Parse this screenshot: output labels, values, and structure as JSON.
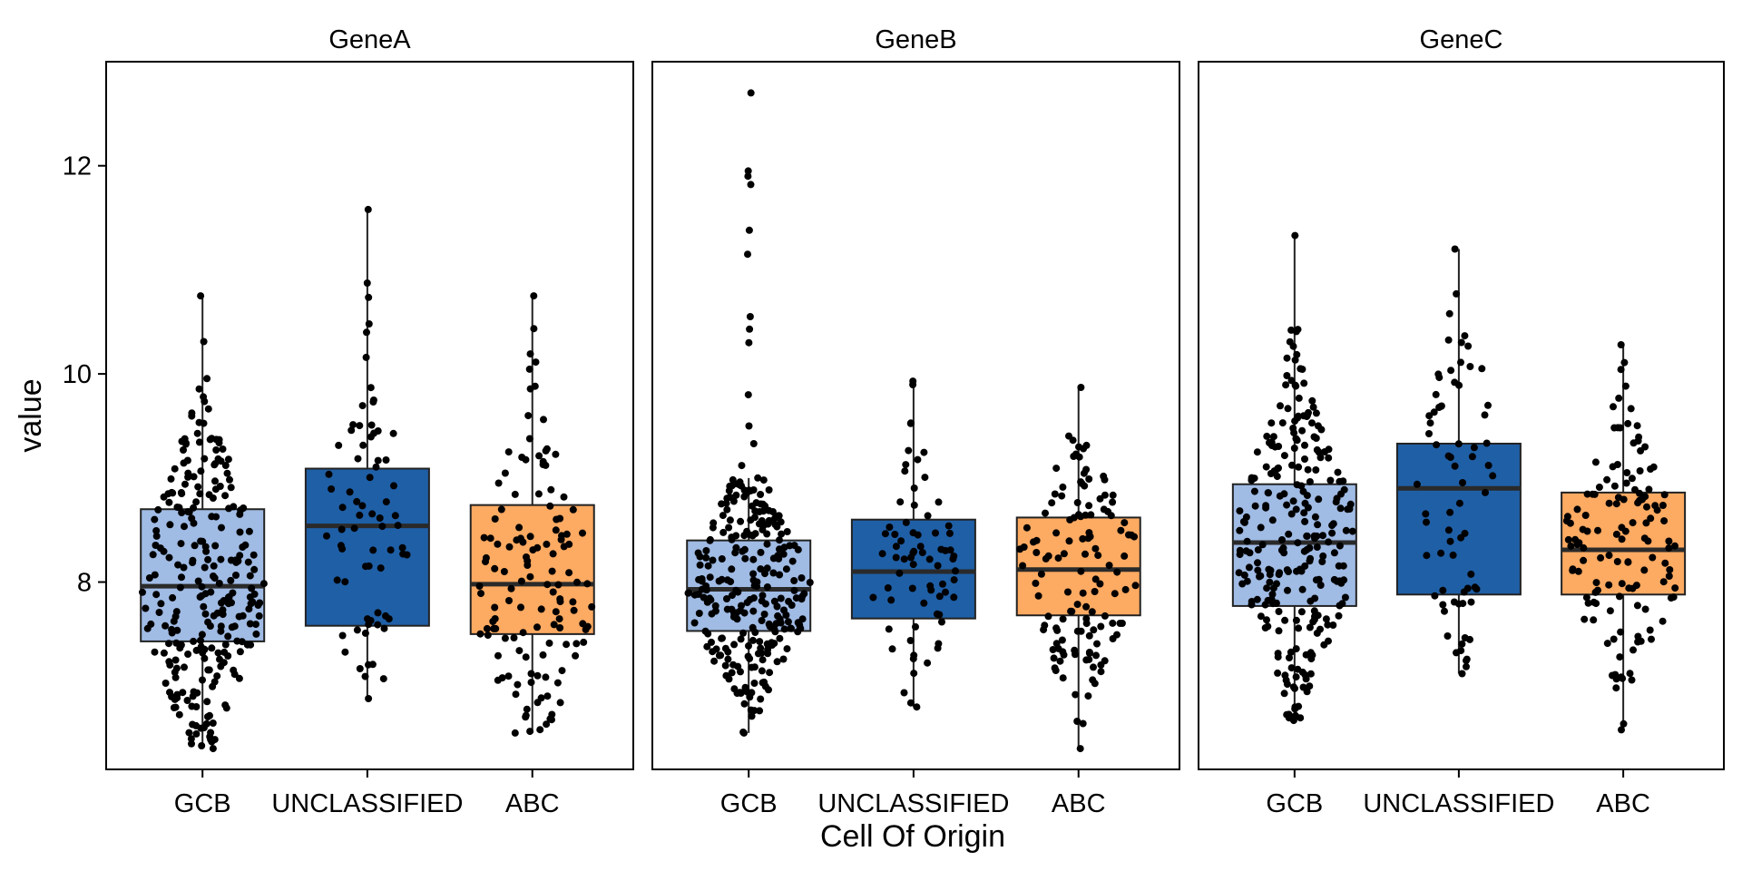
{
  "chart_data": {
    "type": "box",
    "xlabel": "Cell Of Origin",
    "ylabel": "value",
    "categories": [
      "GCB",
      "UNCLASSIFIED",
      "ABC"
    ],
    "colors": {
      "GCB": "#a0bbe4",
      "UNCLASSIFIED": "#1f5fa6",
      "ABC": "#fdaa62"
    },
    "ylim": [
      6.2,
      13.0
    ],
    "yticks": [
      8,
      10,
      12
    ],
    "grid": false,
    "legend": "none",
    "panels": [
      {
        "title": "GeneA",
        "boxes": [
          {
            "category": "GCB",
            "min": 6.4,
            "q1": 7.43,
            "median": 7.96,
            "q3": 8.7,
            "max": 10.75,
            "n": 260
          },
          {
            "category": "UNCLASSIFIED",
            "min": 6.88,
            "q1": 7.58,
            "median": 8.54,
            "q3": 9.09,
            "max": 11.58,
            "n": 70
          },
          {
            "category": "ABC",
            "min": 6.55,
            "q1": 7.5,
            "median": 7.98,
            "q3": 8.74,
            "max": 10.75,
            "n": 130
          }
        ]
      },
      {
        "title": "GeneB",
        "boxes": [
          {
            "category": "GCB",
            "min": 6.55,
            "q1": 7.53,
            "median": 7.93,
            "q3": 8.4,
            "max": 9.0,
            "n": 260,
            "outliers": [
              9.12,
              9.33,
              9.5,
              9.8,
              10.3,
              10.43,
              10.55,
              11.15,
              11.38,
              11.82,
              11.9,
              11.95,
              12.7
            ]
          },
          {
            "category": "UNCLASSIFIED",
            "min": 6.8,
            "q1": 7.65,
            "median": 8.1,
            "q3": 8.6,
            "max": 9.93,
            "n": 70
          },
          {
            "category": "ABC",
            "min": 6.4,
            "q1": 7.68,
            "median": 8.12,
            "q3": 8.62,
            "max": 9.87,
            "n": 130
          }
        ]
      },
      {
        "title": "GeneC",
        "boxes": [
          {
            "category": "GCB",
            "min": 6.67,
            "q1": 7.77,
            "median": 8.38,
            "q3": 8.94,
            "max": 11.33,
            "n": 260
          },
          {
            "category": "UNCLASSIFIED",
            "min": 7.12,
            "q1": 7.88,
            "median": 8.9,
            "q3": 9.33,
            "max": 11.2,
            "n": 70
          },
          {
            "category": "ABC",
            "min": 6.58,
            "q1": 7.88,
            "median": 8.31,
            "q3": 8.86,
            "max": 10.28,
            "n": 130
          }
        ]
      }
    ]
  }
}
